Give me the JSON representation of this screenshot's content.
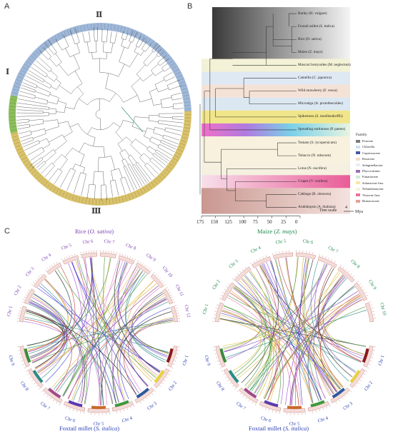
{
  "panels": {
    "a": "A",
    "b": "B",
    "c": "C"
  },
  "panelA": {
    "clades": [
      "Ⅰ",
      "Ⅱ",
      "Ⅲ"
    ],
    "colors": {
      "clade1": "#8cbf5a",
      "clade2": "#9fb8d9",
      "clade3": "#d9c26a"
    }
  },
  "panelB": {
    "species": [
      "Barley (H. vulgare)",
      "Foxtail millet (S. italica)",
      "Rice (O. sativa)",
      "Maize (Z. mays)",
      "Muscari botryoides (M. neglectum)",
      "Camellia (C. japonica)",
      "Wild strawberry (F. vesca)",
      "Microalga (A. protothecoides)",
      "Spikemoss (S. moellendorffii)",
      "Spreading earthmoss (P. patens)",
      "Tomato (S. lycopersicum)",
      "Tobacco (N. tabacum)",
      "Lotus (N. nucifera)",
      "Grapes (V. vinifera)",
      "Cabbage (B. oleracea)",
      "Arabidopsis (A. thaliana)"
    ],
    "axis_ticks": [
      "175",
      "150",
      "125",
      "100",
      "75",
      "50",
      "25",
      "0"
    ],
    "axis_values": [
      175,
      150,
      125,
      100,
      75,
      50,
      25,
      0
    ],
    "tree_scale_label": "Tree scale",
    "tree_scale_value": "4",
    "tree_scale_unit": "Mya",
    "family_title": "Family",
    "families": [
      {
        "name": "Poaceae",
        "color": "#7a7a7a"
      },
      {
        "name": "Chlorella",
        "color": "#cfe0ee"
      },
      {
        "name": "Cupressaceae",
        "color": "#4a55a6"
      },
      {
        "name": "Rosaceae",
        "color": "#f2ddd0"
      },
      {
        "name": "Selaginellaceae",
        "color": "#e8ecf6"
      },
      {
        "name": "Phycocitrium",
        "color": "#9a6fb5"
      },
      {
        "name": "Funariaceae",
        "color": "#d6e9d8"
      },
      {
        "name": "Solanaceae Juss",
        "color": "#f6e8a6"
      },
      {
        "name": "Nelumbonaceae",
        "color": "#f7f2dc"
      },
      {
        "name": "Vitaceae Juss",
        "color": "#ec6fa0"
      },
      {
        "name": "Brassicaceae",
        "color": "#e7a09a"
      }
    ]
  },
  "panelC": {
    "left": {
      "title_name": "Rice (",
      "title_species": "O. sativa",
      "title_close": ")",
      "bottom_name": "Foxtail millet (",
      "bottom_species": "S. italica",
      "bottom_close": ")",
      "top_chr": [
        "Chr 1",
        "Chr 2",
        "Chr 3",
        "Chr 4",
        "Chr 5",
        "Chr 6",
        "Chr 7",
        "Chr 8",
        "Chr 9",
        "Chr 10",
        "Chr 11",
        "Chr 12"
      ],
      "bottom_chr": [
        "Chr 1",
        "Chr 2",
        "Chr 3",
        "Chr 4",
        "Chr 5",
        "Chr 6",
        "Chr 7",
        "Chr 8",
        "Chr 9"
      ],
      "top_color": "#7a3fb0",
      "bottom_color": "#2a3fb5"
    },
    "right": {
      "title_name": "Maize (",
      "title_species": "Z. mays",
      "title_close": ")",
      "bottom_name": "Foxtail millet (",
      "bottom_species": "S. italica",
      "bottom_close": ")",
      "top_chr": [
        "Chr 1",
        "Chr 2",
        "Chr 3",
        "Chr 4",
        "Chr 5",
        "Chr 6",
        "Chr 7",
        "Chr 8",
        "Chr 9",
        "Chr 10"
      ],
      "bottom_chr": [
        "Chr 1",
        "Chr 2",
        "Chr 3",
        "Chr 4",
        "Chr 5",
        "Chr 6",
        "Chr 7",
        "Chr 8",
        "Chr 9"
      ],
      "top_color": "#1f8a4c",
      "bottom_color": "#2a3fb5"
    },
    "link_colors": [
      "#3a3ad0",
      "#a04ad0",
      "#e07ac0",
      "#d9a93a",
      "#2b8a8a",
      "#7a4ab0",
      "#c04040",
      "#4a9a3a",
      "#222222",
      "#e0c040"
    ]
  }
}
